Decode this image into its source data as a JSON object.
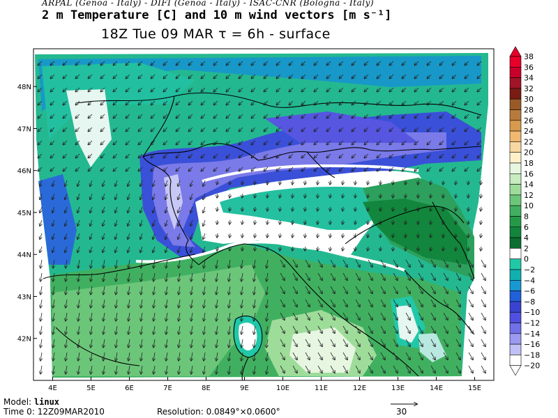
{
  "header": {
    "credits": "ARPAL (Genoa - Italy)  -  DIFI (Genoa - Italy)  -  ISAC-CNR (Bologna - Italy)",
    "title": "2 m Temperature [C] and 10 m wind vectors [m s⁻¹]",
    "subtitle": "18Z Tue 09 MAR  τ = 6h  -  surface"
  },
  "map": {
    "lat_labels": [
      "48N",
      "47N",
      "46N",
      "45N",
      "44N",
      "43N",
      "42N"
    ],
    "lon_labels": [
      "4E",
      "5E",
      "6E",
      "7E",
      "8E",
      "9E",
      "10E",
      "11E",
      "12E",
      "13E",
      "14E",
      "15E"
    ],
    "lon_range": [
      3.5,
      15.5
    ],
    "lat_range": [
      41.0,
      48.9
    ]
  },
  "colorbar": {
    "levels": [
      "38",
      "36",
      "34",
      "32",
      "30",
      "28",
      "26",
      "24",
      "22",
      "20",
      "18",
      "16",
      "14",
      "12",
      "10",
      "8",
      "6",
      "4",
      "2",
      "0",
      "−2",
      "−4",
      "−6",
      "−8",
      "−10",
      "−12",
      "−14",
      "−16",
      "−18",
      "−20"
    ],
    "colors": [
      "#e8002a",
      "#c8002a",
      "#a01428",
      "#7a1c14",
      "#9a5a28",
      "#b87a3c",
      "#d89a4c",
      "#f0b870",
      "#f8d8a0",
      "#fff0c8",
      "#e6f6e0",
      "#c6ecc0",
      "#9edc9a",
      "#6cc67a",
      "#40b060",
      "#249a48",
      "#12863c",
      "#0c6e32",
      "#ffffff",
      "#20c8a8",
      "#10b0b0",
      "#1898d0",
      "#2060d8",
      "#3844d0",
      "#5050e0",
      "#7070e8",
      "#9a9af0",
      "#c0c0f6",
      "#ffffff"
    ],
    "top_arrow_color": "#e8002a"
  },
  "footer": {
    "model_label": "Model:",
    "model_value": "linux",
    "time_label": "Time 0:",
    "time_value": "12Z09MAR2010",
    "resolution_label": "Resolution:",
    "resolution_value": "0.0849°×0.0600°",
    "vector_scale": "30"
  }
}
